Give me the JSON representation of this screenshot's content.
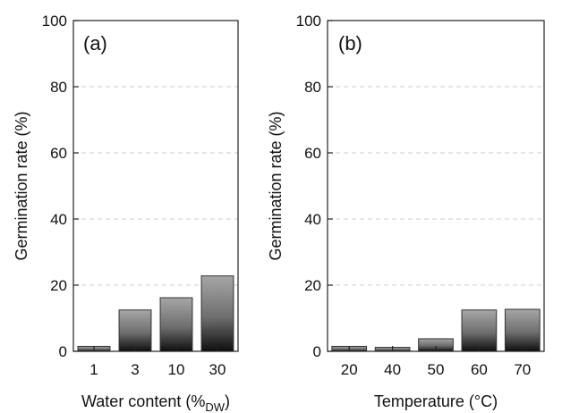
{
  "chart_data": [
    {
      "type": "bar",
      "panel_label": "(a)",
      "categories": [
        "1",
        "3",
        "10",
        "30"
      ],
      "values": [
        1.5,
        12.5,
        16.2,
        22.8
      ],
      "xlabel": "Water content (%",
      "xlabel_subscript": "DW",
      "xlabel_suffix": ")",
      "ylabel": "Germination rate (%)",
      "ylim": [
        0,
        100
      ],
      "yticks": [
        "0",
        "20",
        "40",
        "60",
        "80",
        "100"
      ],
      "grid": "horizontal dashed",
      "bar_color": "gradient #aaaaaa to #111111"
    },
    {
      "type": "bar",
      "panel_label": "(b)",
      "categories": [
        "20",
        "40",
        "50",
        "60",
        "70"
      ],
      "values": [
        1.5,
        1.2,
        3.8,
        12.5,
        12.7
      ],
      "xlabel": "Temperature (°C)",
      "ylabel": "Germination rate (%)",
      "ylim": [
        0,
        100
      ],
      "yticks": [
        "0",
        "20",
        "40",
        "60",
        "80",
        "100"
      ],
      "grid": "horizontal dashed",
      "bar_color": "gradient #aaaaaa to #111111"
    }
  ]
}
